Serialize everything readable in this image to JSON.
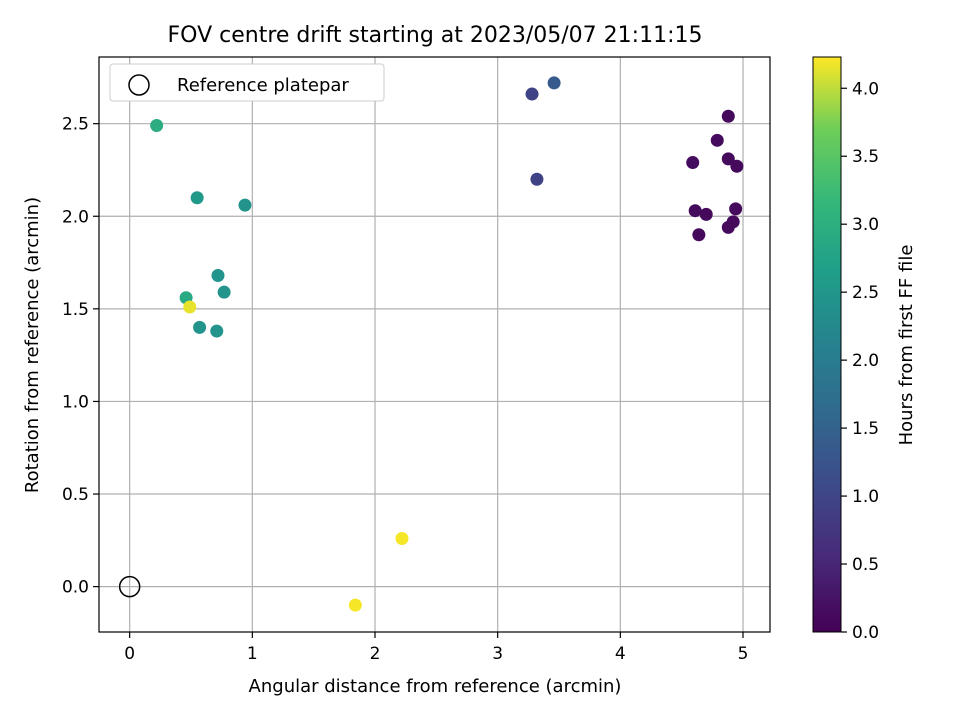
{
  "chart_data": {
    "type": "scatter",
    "title": "FOV centre drift starting at 2023/05/07 21:11:15",
    "xlabel": "Angular distance from reference (arcmin)",
    "ylabel": "Rotation from reference (arcmin)",
    "xlim": [
      -0.25,
      5.22
    ],
    "ylim": [
      -0.245,
      2.86
    ],
    "xticks": [
      "0",
      "1",
      "2",
      "3",
      "4",
      "5"
    ],
    "xtick_values": [
      0,
      1,
      2,
      3,
      4,
      5
    ],
    "yticks": [
      "0.0",
      "0.5",
      "1.0",
      "1.5",
      "2.0",
      "2.5"
    ],
    "ytick_values": [
      0.0,
      0.5,
      1.0,
      1.5,
      2.0,
      2.5
    ],
    "grid": true,
    "legend": {
      "position": "top-left",
      "entries": [
        "Reference platepar"
      ]
    },
    "reference_point": {
      "x": 0,
      "y": 0
    },
    "colorbar": {
      "label": "Hours from first FF file",
      "range": [
        0.0,
        4.23
      ],
      "ticks": [
        "0.0",
        "0.5",
        "1.0",
        "1.5",
        "2.0",
        "2.5",
        "3.0",
        "3.5",
        "4.0"
      ],
      "tick_values": [
        0.0,
        0.5,
        1.0,
        1.5,
        2.0,
        2.5,
        3.0,
        3.5,
        4.0
      ],
      "colormap": "viridis"
    },
    "points": [
      {
        "x": 4.88,
        "y": 2.54,
        "hours": 0.12
      },
      {
        "x": 4.79,
        "y": 2.41,
        "hours": 0.15
      },
      {
        "x": 4.59,
        "y": 2.29,
        "hours": 0.14
      },
      {
        "x": 4.88,
        "y": 2.31,
        "hours": 0.12
      },
      {
        "x": 4.95,
        "y": 2.27,
        "hours": 0.12
      },
      {
        "x": 4.61,
        "y": 2.03,
        "hours": 0.12
      },
      {
        "x": 4.7,
        "y": 2.01,
        "hours": 0.12
      },
      {
        "x": 4.94,
        "y": 2.04,
        "hours": 0.12
      },
      {
        "x": 4.92,
        "y": 1.97,
        "hours": 0.12
      },
      {
        "x": 4.88,
        "y": 1.94,
        "hours": 0.12
      },
      {
        "x": 4.64,
        "y": 1.9,
        "hours": 0.12
      },
      {
        "x": 3.28,
        "y": 2.66,
        "hours": 0.95
      },
      {
        "x": 3.32,
        "y": 2.2,
        "hours": 0.95
      },
      {
        "x": 3.46,
        "y": 2.72,
        "hours": 1.35
      },
      {
        "x": 0.22,
        "y": 2.49,
        "hours": 2.95
      },
      {
        "x": 0.55,
        "y": 2.1,
        "hours": 2.55
      },
      {
        "x": 0.94,
        "y": 2.06,
        "hours": 2.45
      },
      {
        "x": 0.72,
        "y": 1.68,
        "hours": 2.45
      },
      {
        "x": 0.77,
        "y": 1.59,
        "hours": 2.45
      },
      {
        "x": 0.46,
        "y": 1.56,
        "hours": 2.85
      },
      {
        "x": 0.49,
        "y": 1.51,
        "hours": 4.15
      },
      {
        "x": 0.57,
        "y": 1.4,
        "hours": 2.45
      },
      {
        "x": 0.71,
        "y": 1.38,
        "hours": 2.45
      },
      {
        "x": 2.22,
        "y": 0.26,
        "hours": 4.2
      },
      {
        "x": 1.84,
        "y": -0.1,
        "hours": 4.2
      }
    ]
  }
}
